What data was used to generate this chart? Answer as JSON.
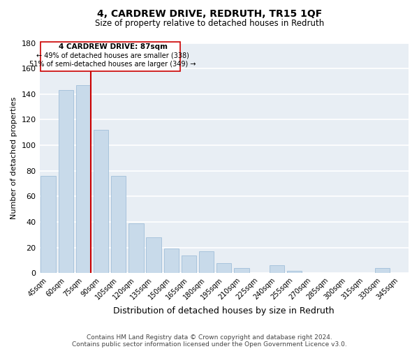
{
  "title": "4, CARDREW DRIVE, REDRUTH, TR15 1QF",
  "subtitle": "Size of property relative to detached houses in Redruth",
  "xlabel": "Distribution of detached houses by size in Redruth",
  "ylabel": "Number of detached properties",
  "bar_labels": [
    "45sqm",
    "60sqm",
    "75sqm",
    "90sqm",
    "105sqm",
    "120sqm",
    "135sqm",
    "150sqm",
    "165sqm",
    "180sqm",
    "195sqm",
    "210sqm",
    "225sqm",
    "240sqm",
    "255sqm",
    "270sqm",
    "285sqm",
    "300sqm",
    "315sqm",
    "330sqm",
    "345sqm"
  ],
  "bar_values": [
    76,
    143,
    147,
    112,
    76,
    39,
    28,
    19,
    14,
    17,
    8,
    4,
    0,
    6,
    2,
    0,
    0,
    0,
    0,
    4,
    0
  ],
  "bar_color": "#c8daea",
  "bar_edge_color": "#a8c4dc",
  "reference_line_color": "#cc0000",
  "annotation_title": "4 CARDREW DRIVE: 87sqm",
  "annotation_line1": "← 49% of detached houses are smaller (338)",
  "annotation_line2": "51% of semi-detached houses are larger (349) →",
  "annotation_box_edge": "#cc0000",
  "ylim": [
    0,
    180
  ],
  "yticks": [
    0,
    20,
    40,
    60,
    80,
    100,
    120,
    140,
    160,
    180
  ],
  "footer1": "Contains HM Land Registry data © Crown copyright and database right 2024.",
  "footer2": "Contains public sector information licensed under the Open Government Licence v3.0.",
  "background_color": "#ffffff",
  "plot_bg_color": "#e8eef4",
  "grid_color": "#ffffff",
  "fig_width": 6.0,
  "fig_height": 5.0
}
